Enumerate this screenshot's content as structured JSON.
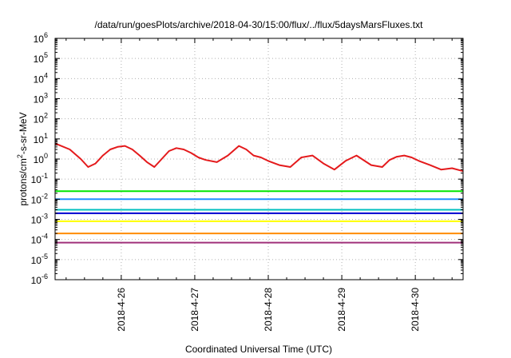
{
  "chart_data": {
    "type": "line",
    "title": "/data/run/goesPlots/archive/2018-04-30/15:00/flux/../flux/5daysMarsFluxes.txt",
    "xlabel": "Coordinated Universal Time (UTC)",
    "ylabel_parts": [
      "protons/cm",
      "2",
      "-s-sr-MeV"
    ],
    "yscale": "log",
    "ylim": [
      1e-06,
      1000000.0
    ],
    "y_ticks": [
      {
        "base": "10",
        "exp": "-6"
      },
      {
        "base": "10",
        "exp": "-5"
      },
      {
        "base": "10",
        "exp": "-4"
      },
      {
        "base": "10",
        "exp": "-3"
      },
      {
        "base": "10",
        "exp": "-2"
      },
      {
        "base": "10",
        "exp": "-1"
      },
      {
        "base": "10",
        "exp": "0"
      },
      {
        "base": "10",
        "exp": "1"
      },
      {
        "base": "10",
        "exp": "2"
      },
      {
        "base": "10",
        "exp": "3"
      },
      {
        "base": "10",
        "exp": "4"
      },
      {
        "base": "10",
        "exp": "5"
      },
      {
        "base": "10",
        "exp": "6"
      }
    ],
    "xlim": [
      25.1,
      30.65
    ],
    "x_ticks": [
      {
        "value": 26,
        "label": "2018-4-26"
      },
      {
        "value": 27,
        "label": "2018-4-27"
      },
      {
        "value": 28,
        "label": "2018-4-28"
      },
      {
        "value": 29,
        "label": "2018-4-29"
      },
      {
        "value": 30,
        "label": "2018-4-30"
      }
    ],
    "grid": true,
    "legend": "none",
    "series": [
      {
        "color": "#e41a1c",
        "x": [
          25.1,
          25.3,
          25.45,
          25.55,
          25.65,
          25.75,
          25.85,
          25.95,
          26.05,
          26.15,
          26.25,
          26.35,
          26.45,
          26.55,
          26.65,
          26.75,
          26.85,
          26.95,
          27.05,
          27.15,
          27.3,
          27.45,
          27.6,
          27.7,
          27.8,
          27.9,
          28.0,
          28.15,
          28.3,
          28.45,
          28.6,
          28.75,
          28.9,
          29.05,
          29.2,
          29.4,
          29.55,
          29.65,
          29.75,
          29.85,
          29.95,
          30.05,
          30.2,
          30.35,
          30.5,
          30.65
        ],
        "y": [
          6,
          3,
          1,
          0.4,
          0.6,
          1.5,
          3,
          4,
          4.5,
          3,
          1.5,
          0.7,
          0.4,
          1,
          2.5,
          3.5,
          3,
          2,
          1.2,
          0.9,
          0.7,
          1.5,
          4.5,
          3,
          1.5,
          1.2,
          0.8,
          0.5,
          0.4,
          1.2,
          1.5,
          0.6,
          0.3,
          0.8,
          1.5,
          0.5,
          0.4,
          0.9,
          1.3,
          1.5,
          1.2,
          0.8,
          0.5,
          0.3,
          0.35,
          0.25
        ]
      },
      {
        "color": "#00e600",
        "x": [
          25.1,
          30.65
        ],
        "y": [
          0.025,
          0.025
        ]
      },
      {
        "color": "#1e90ff",
        "x": [
          25.1,
          30.65
        ],
        "y": [
          0.01,
          0.01
        ]
      },
      {
        "color": "#00c0c0",
        "x": [
          25.1,
          30.65
        ],
        "y": [
          0.003,
          0.003
        ]
      },
      {
        "color": "#0000d0",
        "x": [
          25.1,
          30.65
        ],
        "y": [
          0.002,
          0.002
        ]
      },
      {
        "color": "#ffff00",
        "x": [
          25.1,
          30.65
        ],
        "y": [
          0.0008,
          0.0008
        ]
      },
      {
        "color": "#ff8c00",
        "x": [
          25.1,
          30.65
        ],
        "y": [
          0.0002,
          0.0002
        ]
      },
      {
        "color": "#a0307a",
        "x": [
          25.1,
          30.65
        ],
        "y": [
          7e-05,
          7e-05
        ]
      }
    ]
  }
}
